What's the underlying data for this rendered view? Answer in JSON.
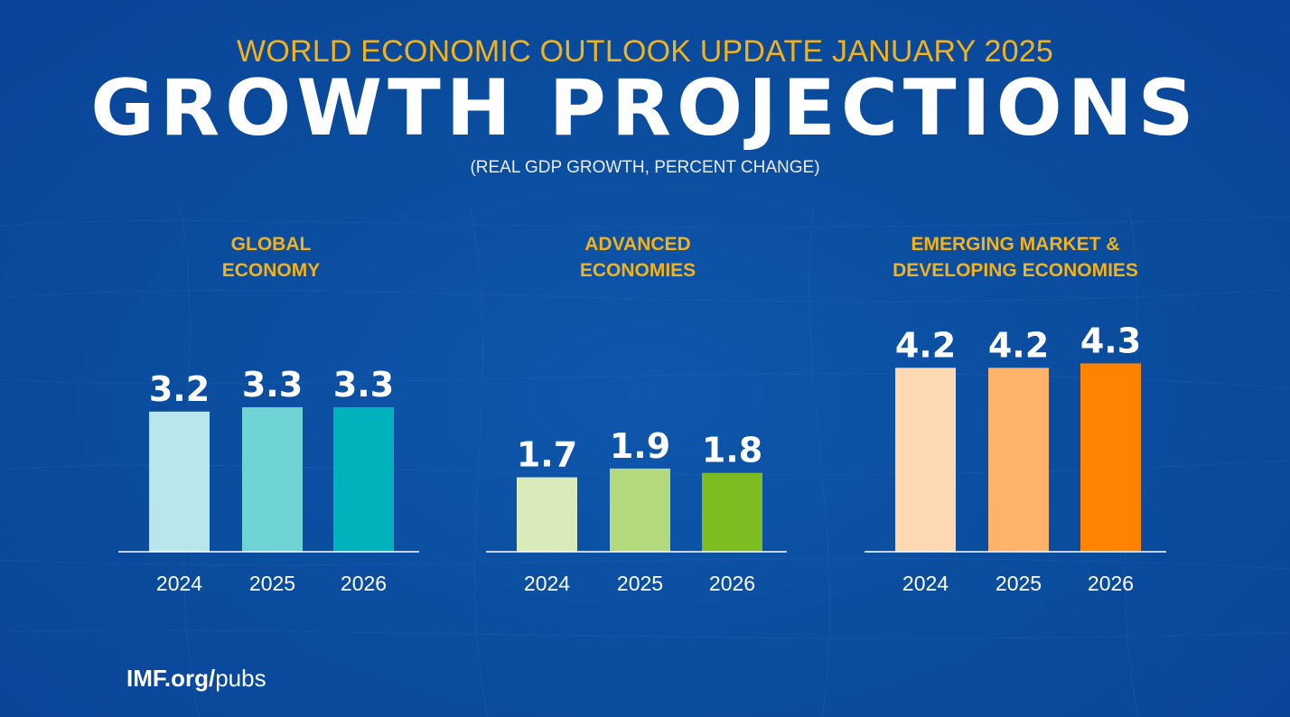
{
  "header": {
    "supertitle": "WORLD ECONOMIC OUTLOOK UPDATE JANUARY 2025",
    "title": "GROWTH PROJECTIONS",
    "subtitle": "(REAL GDP GROWTH, PERCENT CHANGE)"
  },
  "footer": {
    "domain": "IMF.org/",
    "path": "pubs"
  },
  "chart_data": [
    {
      "type": "bar",
      "title": "GLOBAL\nECONOMY",
      "categories": [
        "2024",
        "2025",
        "2026"
      ],
      "values": [
        3.2,
        3.3,
        3.3
      ],
      "colors": [
        "#b8e6ea",
        "#6fd3d6",
        "#00b2bb"
      ]
    },
    {
      "type": "bar",
      "title": "ADVANCED\nECONOMIES",
      "categories": [
        "2024",
        "2025",
        "2026"
      ],
      "values": [
        1.7,
        1.9,
        1.8
      ],
      "colors": [
        "#d9ebbb",
        "#b3d97c",
        "#7dbd22"
      ]
    },
    {
      "type": "bar",
      "title": "EMERGING MARKET &\nDEVELOPING ECONOMIES",
      "categories": [
        "2024",
        "2025",
        "2026"
      ],
      "values": [
        4.2,
        4.2,
        4.3
      ],
      "colors": [
        "#fdd8b3",
        "#feb36a",
        "#ff8200"
      ]
    }
  ]
}
